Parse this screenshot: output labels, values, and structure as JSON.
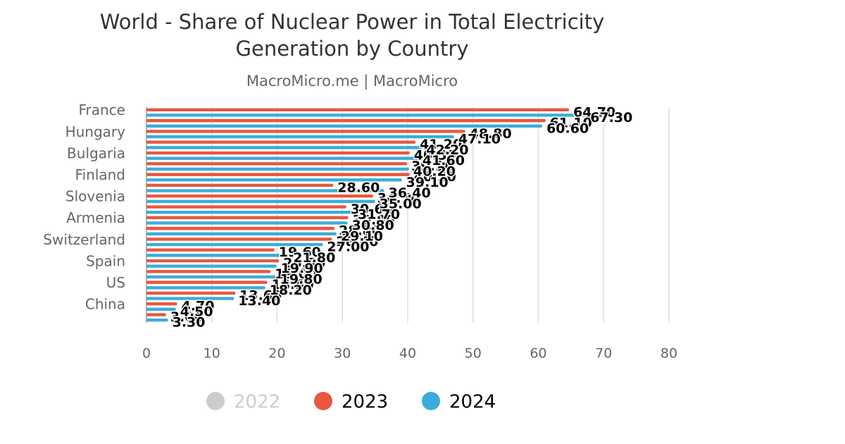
{
  "chart_data": {
    "type": "bar",
    "orientation": "horizontal",
    "title": [
      "World - Share of Nuclear Power in Total Electricity",
      "Generation by Country"
    ],
    "subtitle": "MacroMicro.me | MacroMicro",
    "categories": [
      "France",
      null,
      "Hungary",
      null,
      "Bulgaria",
      null,
      "Finland",
      null,
      "Slovenia",
      null,
      "Armenia",
      null,
      "Switzerland",
      null,
      "Spain",
      null,
      "US",
      null,
      "China",
      null
    ],
    "series": [
      {
        "name": "2022",
        "color": "#cccccc",
        "visible": false,
        "values": [
          null,
          null,
          null,
          null,
          null,
          null,
          null,
          null,
          null,
          null,
          null,
          null,
          null,
          null,
          null,
          null,
          null,
          null,
          null,
          null
        ]
      },
      {
        "name": "2023",
        "color": "#e8573e",
        "visible": true,
        "values": [
          64.7,
          61.1,
          48.8,
          41.2,
          40.3,
          39.9,
          40.3,
          28.6,
          34.7,
          30.6,
          30.9,
          28.8,
          28.4,
          19.6,
          20.3,
          19.0,
          18.5,
          13.6,
          4.7,
          3.0
        ],
        "value_labels": [
          "64.70",
          "61.10",
          "48.80",
          "41.20",
          "40.30",
          "39.90",
          "40.30",
          "28.60",
          "34.70",
          "30.60",
          "30.90",
          "28.80",
          "28.40",
          "19.60",
          "20.30",
          "19.00",
          "18.50",
          "13.60",
          "4.70",
          "3.00"
        ]
      },
      {
        "name": "2024",
        "color": "#3aadd9",
        "visible": true,
        "values": [
          67.3,
          60.6,
          47.1,
          42.2,
          41.6,
          40.2,
          39.1,
          36.4,
          35.0,
          31.7,
          30.8,
          29.1,
          27.0,
          21.8,
          19.9,
          19.8,
          18.2,
          13.4,
          4.5,
          3.3
        ],
        "value_labels": [
          "67.30",
          "60.60",
          "47.10",
          "42.20",
          "41.60",
          "40.20",
          "39.10",
          "36.40",
          "35.00",
          "31.70",
          "30.80",
          "29.10",
          "27.00",
          "21.80",
          "19.90",
          "19.80",
          "18.20",
          "13.40",
          "4.50",
          "3.30"
        ]
      }
    ],
    "xlim": [
      0,
      80
    ],
    "xticks": [
      0,
      10,
      20,
      30,
      40,
      50,
      60,
      70,
      80
    ],
    "grid": true,
    "legend": "bottom"
  }
}
